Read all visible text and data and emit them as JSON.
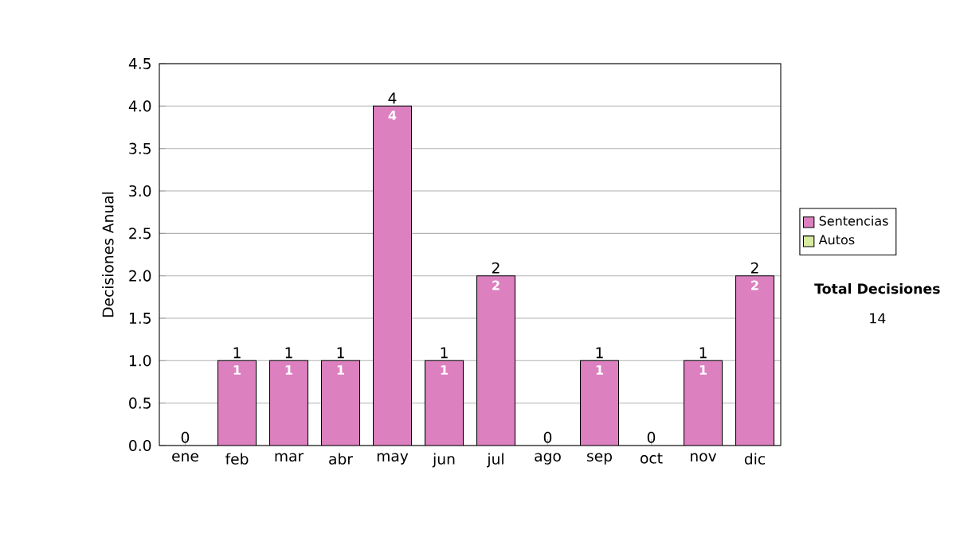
{
  "chart_data": {
    "type": "bar",
    "stacked": true,
    "ylabel": "Decisiones Anual",
    "categories": [
      "ene",
      "feb",
      "mar",
      "abr",
      "may",
      "jun",
      "jul",
      "ago",
      "sep",
      "oct",
      "nov",
      "dic"
    ],
    "series": [
      {
        "name": "Sentencias",
        "color": "#dd80c0",
        "values": [
          0,
          1,
          1,
          1,
          4,
          1,
          2,
          0,
          1,
          0,
          1,
          2
        ],
        "value_labels": [
          null,
          "1",
          "1",
          "1",
          "4",
          "1",
          "2",
          null,
          "1",
          null,
          "1",
          "2"
        ]
      },
      {
        "name": "Autos",
        "color": "#d8eca0",
        "values": [
          0,
          0,
          0,
          0,
          0,
          0,
          0,
          0,
          0,
          0,
          0,
          0
        ]
      }
    ],
    "totals": [
      "0",
      "1",
      "1",
      "1",
      "4",
      "1",
      "2",
      "0",
      "1",
      "0",
      "1",
      "2"
    ],
    "ylim": [
      0,
      4.5
    ],
    "yticks": [
      {
        "value": 0,
        "label": "0.0"
      },
      {
        "value": 0.5,
        "label": "0.5"
      },
      {
        "value": 1,
        "label": "1.0"
      },
      {
        "value": 1.5,
        "label": "1.5"
      },
      {
        "value": 2,
        "label": "2.0"
      },
      {
        "value": 2.5,
        "label": "2.5"
      },
      {
        "value": 3,
        "label": "3.0"
      },
      {
        "value": 3.5,
        "label": "3.5"
      },
      {
        "value": 4,
        "label": "4.0"
      },
      {
        "value": 4.5,
        "label": "4.5"
      }
    ],
    "grid": "y",
    "legend": "right",
    "annotations": [
      "Total Decisiones",
      "14"
    ]
  }
}
